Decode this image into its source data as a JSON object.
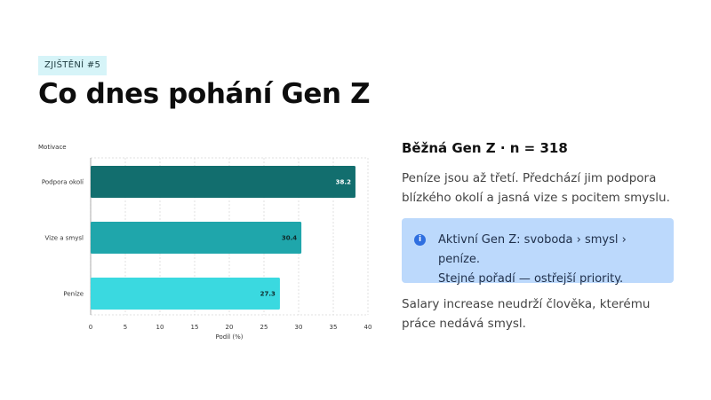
{
  "header": {
    "tag": "ZJIŠTĚNÍ #5",
    "title": "Co dnes pohání Gen Z"
  },
  "chart_data": {
    "type": "bar",
    "orientation": "horizontal",
    "ylabel": "Motivace",
    "xlabel": "Podíl (%)",
    "categories": [
      "Podpora okolí",
      "Vize a smysl",
      "Peníze"
    ],
    "values": [
      38.2,
      30.4,
      27.3
    ],
    "value_labels": [
      "38.2",
      "30.4",
      "27.3"
    ],
    "bar_colors": [
      "#126e6e",
      "#1fa6ab",
      "#3ad9e0"
    ],
    "xlim": [
      0,
      40
    ],
    "xticks": [
      0,
      5,
      10,
      15,
      20,
      25,
      30,
      35,
      40
    ],
    "grid": true
  },
  "panel": {
    "heading": "Běžná Gen Z · n = 318",
    "body": "Peníze jsou až třetí. Předchází jim podpora blízkého okolí a jasná vize s pocitem smyslu.",
    "callout": {
      "icon": "info-icon",
      "icon_glyph": "i",
      "line1": "Aktivní Gen Z: svoboda › smysl › peníze.",
      "line2": "Stejné pořadí — ostřejší priority."
    },
    "footer": "Salary increase neudrží člověka, kterému práce nedává smysl."
  }
}
